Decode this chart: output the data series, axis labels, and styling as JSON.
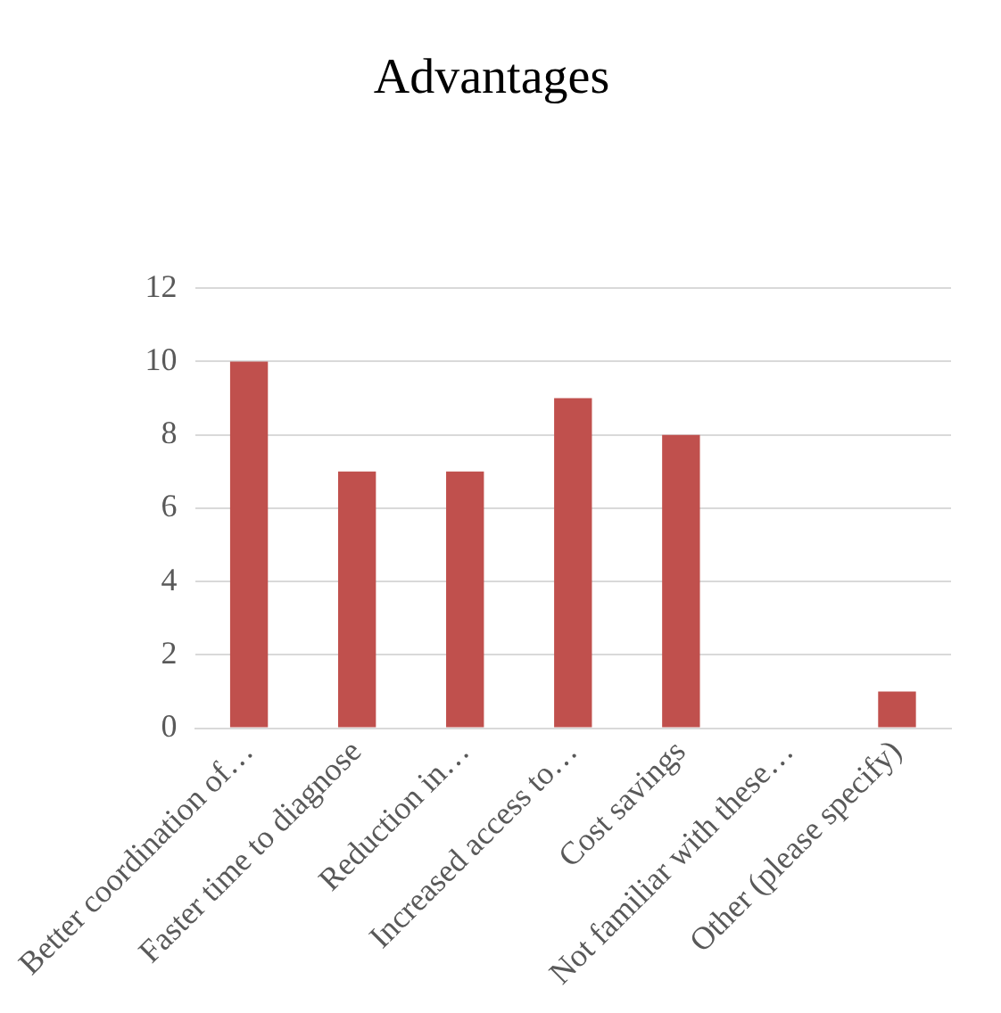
{
  "chart_data": {
    "type": "bar",
    "title": "Advantages",
    "categories": [
      "Better coordination of…",
      "Faster time to diagnose",
      "Reduction in…",
      "Increased access to…",
      "Cost savings",
      "Not familiar with these…",
      "Other (please specify)"
    ],
    "values": [
      10,
      7,
      7,
      9,
      8,
      0,
      1
    ],
    "color": "#c0504d",
    "ylim": [
      0,
      12
    ],
    "yticks": [
      0,
      2,
      4,
      6,
      8,
      10,
      12
    ],
    "grid": "y"
  }
}
